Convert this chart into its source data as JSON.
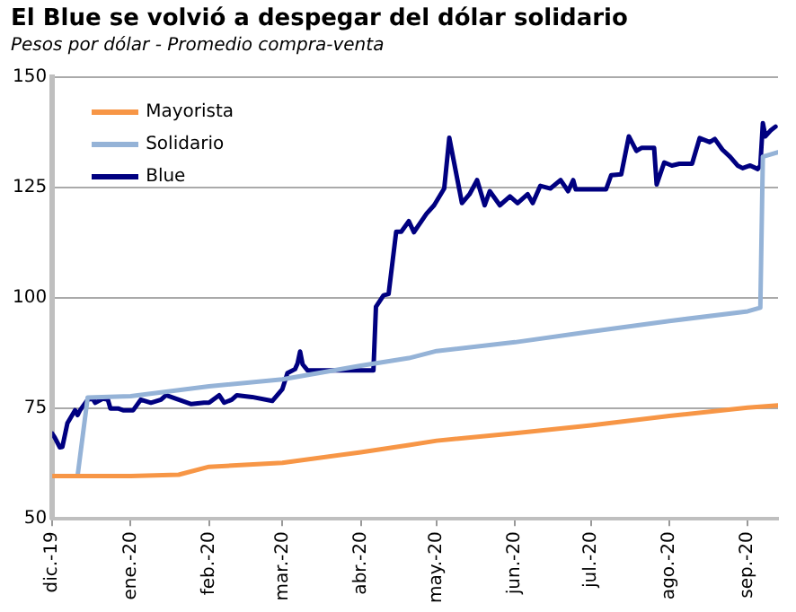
{
  "chart_data": {
    "type": "line",
    "title": "El Blue  se volvió a despegar del dólar solidario",
    "subtitle": "Pesos por dólar - Promedio compra-venta",
    "xlim": [
      "2019-12-01",
      "2020-09-13"
    ],
    "xticks": [
      {
        "value": "2019-12-01",
        "label": "dic.-19"
      },
      {
        "value": "2020-01-01",
        "label": "ene.-20"
      },
      {
        "value": "2020-02-01",
        "label": "feb.-20"
      },
      {
        "value": "2020-03-01",
        "label": "mar.-20"
      },
      {
        "value": "2020-04-01",
        "label": "abr.-20"
      },
      {
        "value": "2020-05-01",
        "label": "may.-20"
      },
      {
        "value": "2020-06-01",
        "label": "jun.-20"
      },
      {
        "value": "2020-07-01",
        "label": "jul.-20"
      },
      {
        "value": "2020-08-01",
        "label": "ago.-20"
      },
      {
        "value": "2020-09-01",
        "label": "sep.-20"
      }
    ],
    "ylim": [
      50,
      150
    ],
    "yticks": [
      50,
      75,
      100,
      125,
      150
    ],
    "grid": "y",
    "legend": "top left",
    "marker": "none",
    "line_style": "solid",
    "series": [
      {
        "name": "Mayorista",
        "color": "#f79646",
        "x": [
          "2019-12-01",
          "2020-01-01",
          "2020-01-20",
          "2020-02-01",
          "2020-03-01",
          "2020-04-01",
          "2020-04-20",
          "2020-05-01",
          "2020-06-01",
          "2020-07-01",
          "2020-08-01",
          "2020-09-01",
          "2020-09-13"
        ],
        "values": [
          59.7,
          59.7,
          60,
          61.8,
          62.7,
          65.1,
          66.7,
          67.7,
          69.4,
          71.2,
          73.3,
          75.2,
          75.7
        ]
      },
      {
        "name": "Solidario",
        "color": "#95b3d7",
        "x": [
          "2019-12-01",
          "2019-12-11",
          "2019-12-15",
          "2020-01-01",
          "2020-02-01",
          "2020-03-01",
          "2020-04-01",
          "2020-04-20",
          "2020-05-01",
          "2020-06-01",
          "2020-07-01",
          "2020-08-01",
          "2020-09-01",
          "2020-09-06",
          "2020-09-07",
          "2020-09-13"
        ],
        "values": [
          59.7,
          59.7,
          77.5,
          77.8,
          80,
          81.6,
          84.7,
          86.4,
          88,
          90,
          92.4,
          94.8,
          97,
          97.8,
          132,
          133
        ]
      },
      {
        "name": "Blue",
        "color": "#000080",
        "x": [
          "2019-12-01",
          "2019-12-02",
          "2019-12-04",
          "2019-12-05",
          "2019-12-07",
          "2019-12-10",
          "2019-12-11",
          "2019-12-12",
          "2019-12-15",
          "2019-12-17",
          "2019-12-18",
          "2019-12-21",
          "2019-12-23",
          "2019-12-24",
          "2019-12-27",
          "2019-12-29",
          "2020-01-02",
          "2020-01-05",
          "2020-01-09",
          "2020-01-13",
          "2020-01-15",
          "2020-01-20",
          "2020-01-25",
          "2020-01-30",
          "2020-02-01",
          "2020-02-05",
          "2020-02-07",
          "2020-02-10",
          "2020-02-12",
          "2020-02-18",
          "2020-02-26",
          "2020-03-01",
          "2020-03-03",
          "2020-03-06",
          "2020-03-07",
          "2020-03-08",
          "2020-03-09",
          "2020-03-11",
          "2020-04-06",
          "2020-04-07",
          "2020-04-10",
          "2020-04-12",
          "2020-04-15",
          "2020-04-17",
          "2020-04-20",
          "2020-04-22",
          "2020-04-27",
          "2020-04-30",
          "2020-05-04",
          "2020-05-06",
          "2020-05-11",
          "2020-05-14",
          "2020-05-17",
          "2020-05-20",
          "2020-05-22",
          "2020-05-26",
          "2020-05-30",
          "2020-06-02",
          "2020-06-06",
          "2020-06-08",
          "2020-06-11",
          "2020-06-15",
          "2020-06-19",
          "2020-06-22",
          "2020-06-24",
          "2020-06-25",
          "2020-07-07",
          "2020-07-09",
          "2020-07-13",
          "2020-07-16",
          "2020-07-19",
          "2020-07-21",
          "2020-07-26",
          "2020-07-27",
          "2020-07-30",
          "2020-08-02",
          "2020-08-05",
          "2020-08-10",
          "2020-08-13",
          "2020-08-17",
          "2020-08-19",
          "2020-08-22",
          "2020-08-25",
          "2020-08-28",
          "2020-08-30",
          "2020-09-02",
          "2020-09-05",
          "2020-09-06",
          "2020-09-07",
          "2020-09-08",
          "2020-09-10",
          "2020-09-12"
        ],
        "values": [
          69.3,
          68.4,
          66.2,
          66.3,
          71.7,
          74.6,
          73.5,
          74.6,
          77,
          77.2,
          76.3,
          77.2,
          77,
          75,
          75,
          74.6,
          74.6,
          77,
          76.3,
          77,
          78,
          77,
          76,
          76.3,
          76.3,
          78,
          76.3,
          77,
          78,
          77.6,
          76.7,
          79.4,
          83,
          83.9,
          85.2,
          87.9,
          85,
          83.6,
          83.6,
          98,
          100.6,
          100.9,
          115,
          115,
          117.4,
          114.9,
          119.1,
          121,
          124.8,
          136.3,
          121.5,
          123.5,
          126.7,
          121,
          124.2,
          121,
          123,
          121.5,
          123.5,
          121.5,
          125.4,
          124.8,
          126.7,
          124.2,
          126.7,
          124.6,
          124.6,
          127.8,
          128,
          136.6,
          133.3,
          134,
          134,
          125.7,
          130.7,
          130,
          130.4,
          130.4,
          136.2,
          135.3,
          136,
          133.6,
          132,
          130,
          129.4,
          130,
          129.2,
          130,
          139.6,
          136.6,
          137.9,
          138.8
        ]
      }
    ]
  }
}
